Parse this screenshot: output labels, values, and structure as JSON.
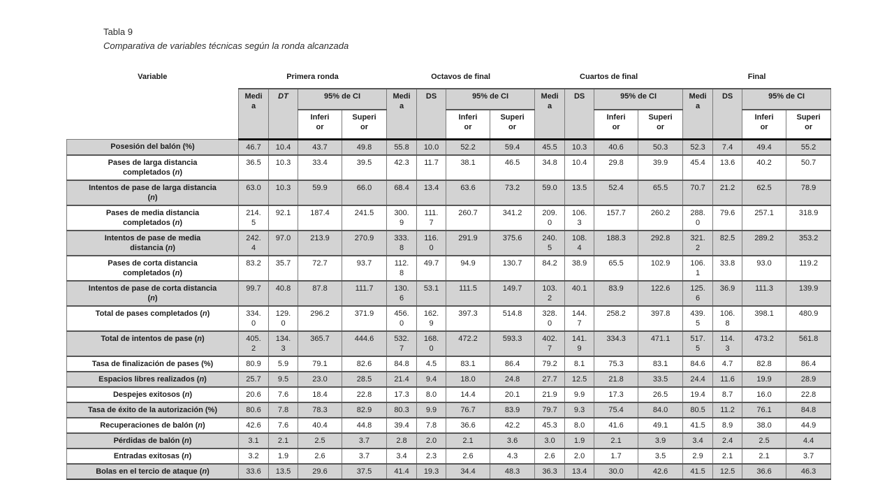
{
  "page": {
    "title": "Tabla 9",
    "subtitle": "Comparativa de variables técnicas según la ronda alcanzada"
  },
  "colors": {
    "row_shade": "#d3d3d3",
    "grid_line": "#7a7a7a",
    "heavy_line": "#565656",
    "header_separator": "#111111",
    "text": "#1c1c1c"
  },
  "table": {
    "variable_header": "Variable",
    "groups": [
      {
        "label": "Primera ronda",
        "sd": "DT"
      },
      {
        "label": "Octavos de final",
        "sd": "DS"
      },
      {
        "label": "Cuartos de final",
        "sd": "DS"
      },
      {
        "label": "Final",
        "sd": "DS"
      }
    ],
    "subheaders": {
      "mean": "Medi\na",
      "ci": "95% de CI",
      "lower": "Inferi\nor",
      "upper": "Superi\nor"
    },
    "rows": [
      {
        "variable": "Posesión del balón (%)",
        "values": [
          "46.7",
          "10.4",
          "43.7",
          "49.8",
          "55.8",
          "10.0",
          "52.2",
          "59.4",
          "45.5",
          "10.3",
          "40.6",
          "50.3",
          "52.3",
          "7.4",
          "49.4",
          "55.2"
        ]
      },
      {
        "variable": "Pases de larga distancia\ncompletados (n)",
        "values": [
          "36.5",
          "10.3",
          "33.4",
          "39.5",
          "42.3",
          "11.7",
          "38.1",
          "46.5",
          "34.8",
          "10.4",
          "29.8",
          "39.9",
          "45.4",
          "13.6",
          "40.2",
          "50.7"
        ]
      },
      {
        "variable": "Intentos de pase de larga distancia\n(n)",
        "values": [
          "63.0",
          "10.3",
          "59.9",
          "66.0",
          "68.4",
          "13.4",
          "63.6",
          "73.2",
          "59.0",
          "13.5",
          "52.4",
          "65.5",
          "70.7",
          "21.2",
          "62.5",
          "78.9"
        ]
      },
      {
        "variable": "Pases de media distancia\ncompletados (n)",
        "values": [
          "214.\n5",
          "92.1",
          "187.4",
          "241.5",
          "300.\n9",
          "111.\n7",
          "260.7",
          "341.2",
          "209.\n0",
          "106.\n3",
          "157.7",
          "260.2",
          "288.\n0",
          "79.6",
          "257.1",
          "318.9"
        ]
      },
      {
        "variable": "Intentos de pase de media\ndistancia (n)",
        "values": [
          "242.\n4",
          "97.0",
          "213.9",
          "270.9",
          "333.\n8",
          "116.\n0",
          "291.9",
          "375.6",
          "240.\n5",
          "108.\n4",
          "188.3",
          "292.8",
          "321.\n2",
          "82.5",
          "289.2",
          "353.2"
        ]
      },
      {
        "variable": "Pases de corta distancia\ncompletados (n)",
        "values": [
          "83.2",
          "35.7",
          "72.7",
          "93.7",
          "112.\n8",
          "49.7",
          "94.9",
          "130.7",
          "84.2",
          "38.9",
          "65.5",
          "102.9",
          "106.\n1",
          "33.8",
          "93.0",
          "119.2"
        ]
      },
      {
        "variable": "Intentos de pase de corta distancia\n(n)",
        "values": [
          "99.7",
          "40.8",
          "87.8",
          "111.7",
          "130.\n6",
          "53.1",
          "111.5",
          "149.7",
          "103.\n2",
          "40.1",
          "83.9",
          "122.6",
          "125.\n6",
          "36.9",
          "111.3",
          "139.9"
        ]
      },
      {
        "variable": "Total de pases completados (n)",
        "values": [
          "334.\n0",
          "129.\n0",
          "296.2",
          "371.9",
          "456.\n0",
          "162.\n9",
          "397.3",
          "514.8",
          "328.\n0",
          "144.\n7",
          "258.2",
          "397.8",
          "439.\n5",
          "106.\n8",
          "398.1",
          "480.9"
        ]
      },
      {
        "variable": "Total de intentos de pase (n)",
        "values": [
          "405.\n2",
          "134.\n3",
          "365.7",
          "444.6",
          "532.\n7",
          "168.\n0",
          "472.2",
          "593.3",
          "402.\n7",
          "141.\n9",
          "334.3",
          "471.1",
          "517.\n5",
          "114.\n3",
          "473.2",
          "561.8"
        ]
      },
      {
        "variable": "Tasa de finalización de pases (%)",
        "values": [
          "80.9",
          "5.9",
          "79.1",
          "82.6",
          "84.8",
          "4.5",
          "83.1",
          "86.4",
          "79.2",
          "8.1",
          "75.3",
          "83.1",
          "84.6",
          "4.7",
          "82.8",
          "86.4"
        ]
      },
      {
        "variable": "Espacios libres realizados (n)",
        "values": [
          "25.7",
          "9.5",
          "23.0",
          "28.5",
          "21.4",
          "9.4",
          "18.0",
          "24.8",
          "27.7",
          "12.5",
          "21.8",
          "33.5",
          "24.4",
          "11.6",
          "19.9",
          "28.9"
        ]
      },
      {
        "variable": "Despejes exitosos (n)",
        "values": [
          "20.6",
          "7.6",
          "18.4",
          "22.8",
          "17.3",
          "8.0",
          "14.4",
          "20.1",
          "21.9",
          "9.9",
          "17.3",
          "26.5",
          "19.4",
          "8.7",
          "16.0",
          "22.8"
        ]
      },
      {
        "variable": "Tasa de éxito de la autorización (%)",
        "values": [
          "80.6",
          "7.8",
          "78.3",
          "82.9",
          "80.3",
          "9.9",
          "76.7",
          "83.9",
          "79.7",
          "9.3",
          "75.4",
          "84.0",
          "80.5",
          "11.2",
          "76.1",
          "84.8"
        ]
      },
      {
        "variable": "Recuperaciones de balón (n)",
        "values": [
          "42.6",
          "7.6",
          "40.4",
          "44.8",
          "39.4",
          "7.8",
          "36.6",
          "42.2",
          "45.3",
          "8.0",
          "41.6",
          "49.1",
          "41.5",
          "8.9",
          "38.0",
          "44.9"
        ]
      },
      {
        "variable": "Pérdidas de balón (n)",
        "values": [
          "3.1",
          "2.1",
          "2.5",
          "3.7",
          "2.8",
          "2.0",
          "2.1",
          "3.6",
          "3.0",
          "1.9",
          "2.1",
          "3.9",
          "3.4",
          "2.4",
          "2.5",
          "4.4"
        ]
      },
      {
        "variable": "Entradas exitosas (n)",
        "values": [
          "3.2",
          "1.9",
          "2.6",
          "3.7",
          "3.4",
          "2.3",
          "2.6",
          "4.3",
          "2.6",
          "2.0",
          "1.7",
          "3.5",
          "2.9",
          "2.1",
          "2.1",
          "3.7"
        ]
      },
      {
        "variable": "Bolas en el tercio de ataque (n)",
        "values": [
          "33.6",
          "13.5",
          "29.6",
          "37.5",
          "41.4",
          "19.3",
          "34.4",
          "48.3",
          "36.3",
          "13.4",
          "30.0",
          "42.6",
          "41.5",
          "12.5",
          "36.6",
          "46.3"
        ]
      }
    ]
  }
}
